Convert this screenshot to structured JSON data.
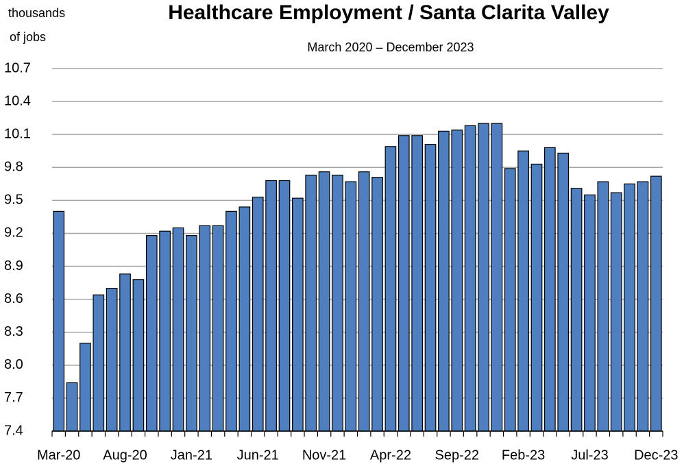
{
  "chart_data": {
    "type": "bar",
    "title": "Healthcare Employment / Santa Clarita Valley",
    "subtitle": "March 2020 – December 2023",
    "y_label_lines": [
      "thousands",
      "of jobs"
    ],
    "categories": [
      "Mar-20",
      null,
      null,
      null,
      null,
      "Aug-20",
      null,
      null,
      null,
      null,
      "Jan-21",
      null,
      null,
      null,
      null,
      "Jun-21",
      null,
      null,
      null,
      null,
      "Nov-21",
      null,
      null,
      null,
      null,
      "Apr-22",
      null,
      null,
      null,
      null,
      "Sep-22",
      null,
      null,
      null,
      null,
      "Feb-23",
      null,
      null,
      null,
      null,
      "Jul-23",
      null,
      null,
      null,
      null,
      "Dec-23"
    ],
    "values": [
      9.4,
      7.84,
      8.2,
      8.64,
      8.7,
      8.83,
      8.78,
      9.18,
      9.22,
      9.25,
      9.18,
      9.27,
      9.27,
      9.4,
      9.44,
      9.53,
      9.68,
      9.68,
      9.52,
      9.73,
      9.76,
      9.73,
      9.67,
      9.76,
      9.71,
      9.99,
      10.09,
      10.09,
      10.01,
      10.13,
      10.14,
      10.18,
      10.2,
      10.2,
      9.79,
      9.95,
      9.83,
      9.98,
      9.93,
      9.61,
      9.55,
      9.67,
      9.57,
      9.65,
      9.67,
      9.72
    ],
    "color": "#4f7fbf",
    "ylim": [
      7.4,
      10.7
    ],
    "yticks": [
      7.4,
      7.7,
      {
        "value": 8,
        "label": "8.0"
      },
      8.3,
      8.6,
      8.9,
      9.2,
      9.5,
      9.8,
      10.1,
      10.4,
      10.7
    ],
    "grid": true
  }
}
